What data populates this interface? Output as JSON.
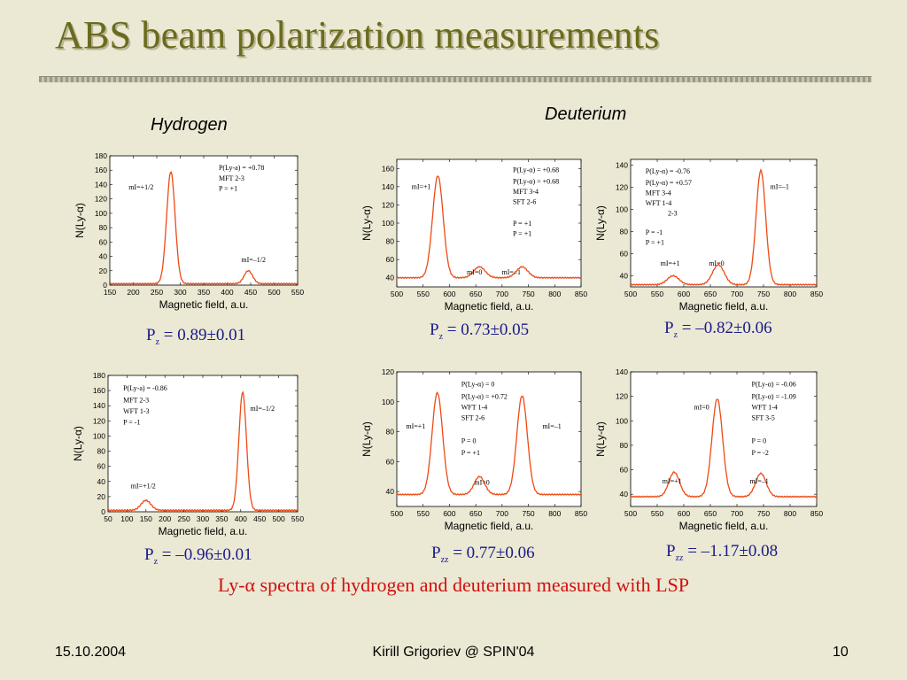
{
  "title": "ABS beam polarization measurements",
  "hydrogen_label": "Hydrogen",
  "deuterium_label": "Deuterium",
  "caption": "Ly-α spectra of hydrogen and deuterium measured with LSP",
  "footer": {
    "date": "15.10.2004",
    "center": "Kirill Grigoriev @ SPIN'04",
    "page": "10"
  },
  "colors": {
    "curve": "#ee4a14",
    "title": "#6b6b1e",
    "caption": "#d01010",
    "pvalue": "#1a1a8a"
  },
  "chart_data": [
    {
      "type": "line",
      "group": "Hydrogen",
      "xlabel": "Magnetic field, a.u.",
      "ylabel": "N(Ly-α)",
      "xlim": [
        150,
        550
      ],
      "ylim": [
        0,
        180
      ],
      "xticks": [
        150,
        200,
        250,
        300,
        350,
        400,
        450,
        500,
        550
      ],
      "yticks": [
        0,
        20,
        40,
        60,
        80,
        100,
        120,
        140,
        160,
        180
      ],
      "peaks": [
        {
          "x": 280,
          "y": 158,
          "w": 9
        },
        {
          "x": 445,
          "y": 20,
          "w": 9
        }
      ],
      "baseline": 2,
      "annotations": [
        "P(Ly-a) = +0.78",
        "MFT 2-3",
        "P = +1"
      ],
      "state_labels": [
        "mI=+1/2",
        "mI=–1/2"
      ],
      "result": {
        "symbol": "P",
        "sub": "z",
        "text": " = 0.89±0.01"
      }
    },
    {
      "type": "line",
      "group": "Deuterium",
      "xlabel": "Magnetic field, a.u.",
      "ylabel": "N(Ly-α)",
      "xlim": [
        500,
        850
      ],
      "ylim": [
        30,
        170
      ],
      "xticks": [
        500,
        550,
        600,
        650,
        700,
        750,
        800,
        850
      ],
      "yticks": [
        40,
        60,
        80,
        100,
        120,
        140,
        160
      ],
      "peaks": [
        {
          "x": 578,
          "y": 152,
          "w": 10
        },
        {
          "x": 657,
          "y": 52,
          "w": 11
        },
        {
          "x": 738,
          "y": 52,
          "w": 11
        }
      ],
      "baseline": 40,
      "annotations": [
        "P(Ly-α) = +0.68",
        "P(Ly-α) = +0.68",
        "MFT 3-4",
        "SFT 2-6",
        "P = +1",
        "P = +1"
      ],
      "state_labels": [
        "mI=+1",
        "mI=0",
        "mI=–1"
      ],
      "result": {
        "symbol": "P",
        "sub": "z",
        "text": " = 0.73±0.05"
      }
    },
    {
      "type": "line",
      "group": "Deuterium",
      "xlabel": "Magnetic field, a.u.",
      "ylabel": "N(Ly-α)",
      "xlim": [
        500,
        850
      ],
      "ylim": [
        30,
        145
      ],
      "xticks": [
        500,
        550,
        600,
        650,
        700,
        750,
        800,
        850
      ],
      "yticks": [
        40,
        60,
        80,
        100,
        120,
        140
      ],
      "peaks": [
        {
          "x": 580,
          "y": 40,
          "w": 11
        },
        {
          "x": 665,
          "y": 50,
          "w": 11
        },
        {
          "x": 745,
          "y": 135,
          "w": 9
        }
      ],
      "baseline": 32,
      "annotations": [
        "P(Ly-α) = -0.76",
        "P(Ly-α) = +0.57",
        "MFT 3-4",
        "WFT 1-4",
        "2-3",
        "P = -1",
        "P = +1"
      ],
      "state_labels": [
        "mI=–1",
        "mI=+1",
        "mI=0"
      ],
      "result": {
        "symbol": "P",
        "sub": "z",
        "text": " = –0.82±0.06"
      }
    },
    {
      "type": "line",
      "group": "Hydrogen",
      "xlabel": "Magnetic field, a.u.",
      "ylabel": "N(Ly-α)",
      "xlim": [
        50,
        550
      ],
      "ylim": [
        0,
        180
      ],
      "xticks": [
        50,
        100,
        150,
        200,
        250,
        300,
        350,
        400,
        450,
        500,
        550
      ],
      "yticks": [
        0,
        20,
        40,
        60,
        80,
        100,
        120,
        140,
        160,
        180
      ],
      "peaks": [
        {
          "x": 150,
          "y": 15,
          "w": 13
        },
        {
          "x": 405,
          "y": 158,
          "w": 10
        }
      ],
      "baseline": 2,
      "annotations": [
        "P(Ly-a) = -0.86",
        "MFT 2-3",
        "WFT 1-3",
        "P = -1"
      ],
      "state_labels": [
        "mI=–1/2",
        "mI=+1/2"
      ],
      "result": {
        "symbol": "P",
        "sub": "z",
        "text": " = –0.96±0.01"
      }
    },
    {
      "type": "line",
      "group": "Deuterium",
      "xlabel": "Magnetic field, a.u.",
      "ylabel": "N(Ly-α)",
      "xlim": [
        500,
        850
      ],
      "ylim": [
        30,
        120
      ],
      "xticks": [
        500,
        550,
        600,
        650,
        700,
        750,
        800,
        850
      ],
      "yticks": [
        40,
        60,
        80,
        100,
        120
      ],
      "peaks": [
        {
          "x": 577,
          "y": 106,
          "w": 10
        },
        {
          "x": 657,
          "y": 50,
          "w": 10
        },
        {
          "x": 738,
          "y": 104,
          "w": 10
        }
      ],
      "baseline": 38,
      "annotations": [
        "P(Ly-α) = 0",
        "P(Ly-α) = +0.72",
        "WFT 1-4",
        "SFT 2-6",
        "P = 0",
        "P = +1"
      ],
      "state_labels": [
        "mI=+1",
        "mI=–1",
        "mI=0"
      ],
      "result": {
        "symbol": "P",
        "sub": "zz",
        "text": " = 0.77±0.06"
      }
    },
    {
      "type": "line",
      "group": "Deuterium",
      "xlabel": "Magnetic field, a.u.",
      "ylabel": "N(Ly-α)",
      "xlim": [
        500,
        850
      ],
      "ylim": [
        30,
        140
      ],
      "xticks": [
        500,
        550,
        600,
        650,
        700,
        750,
        800,
        850
      ],
      "yticks": [
        40,
        60,
        80,
        100,
        120,
        140
      ],
      "peaks": [
        {
          "x": 582,
          "y": 58,
          "w": 10
        },
        {
          "x": 663,
          "y": 118,
          "w": 10
        },
        {
          "x": 745,
          "y": 57,
          "w": 10
        }
      ],
      "baseline": 38,
      "annotations": [
        "P(Ly-α) = -0.06",
        "P(Ly-α) = -1.09",
        "WFT 1-4",
        "SFT 3-5",
        "P = 0",
        "P = -2"
      ],
      "state_labels": [
        "mI=0",
        "mI=+1",
        "mI=–1"
      ],
      "result": {
        "symbol": "P",
        "sub": "zz",
        "text": " = –1.17±0.08"
      }
    }
  ]
}
